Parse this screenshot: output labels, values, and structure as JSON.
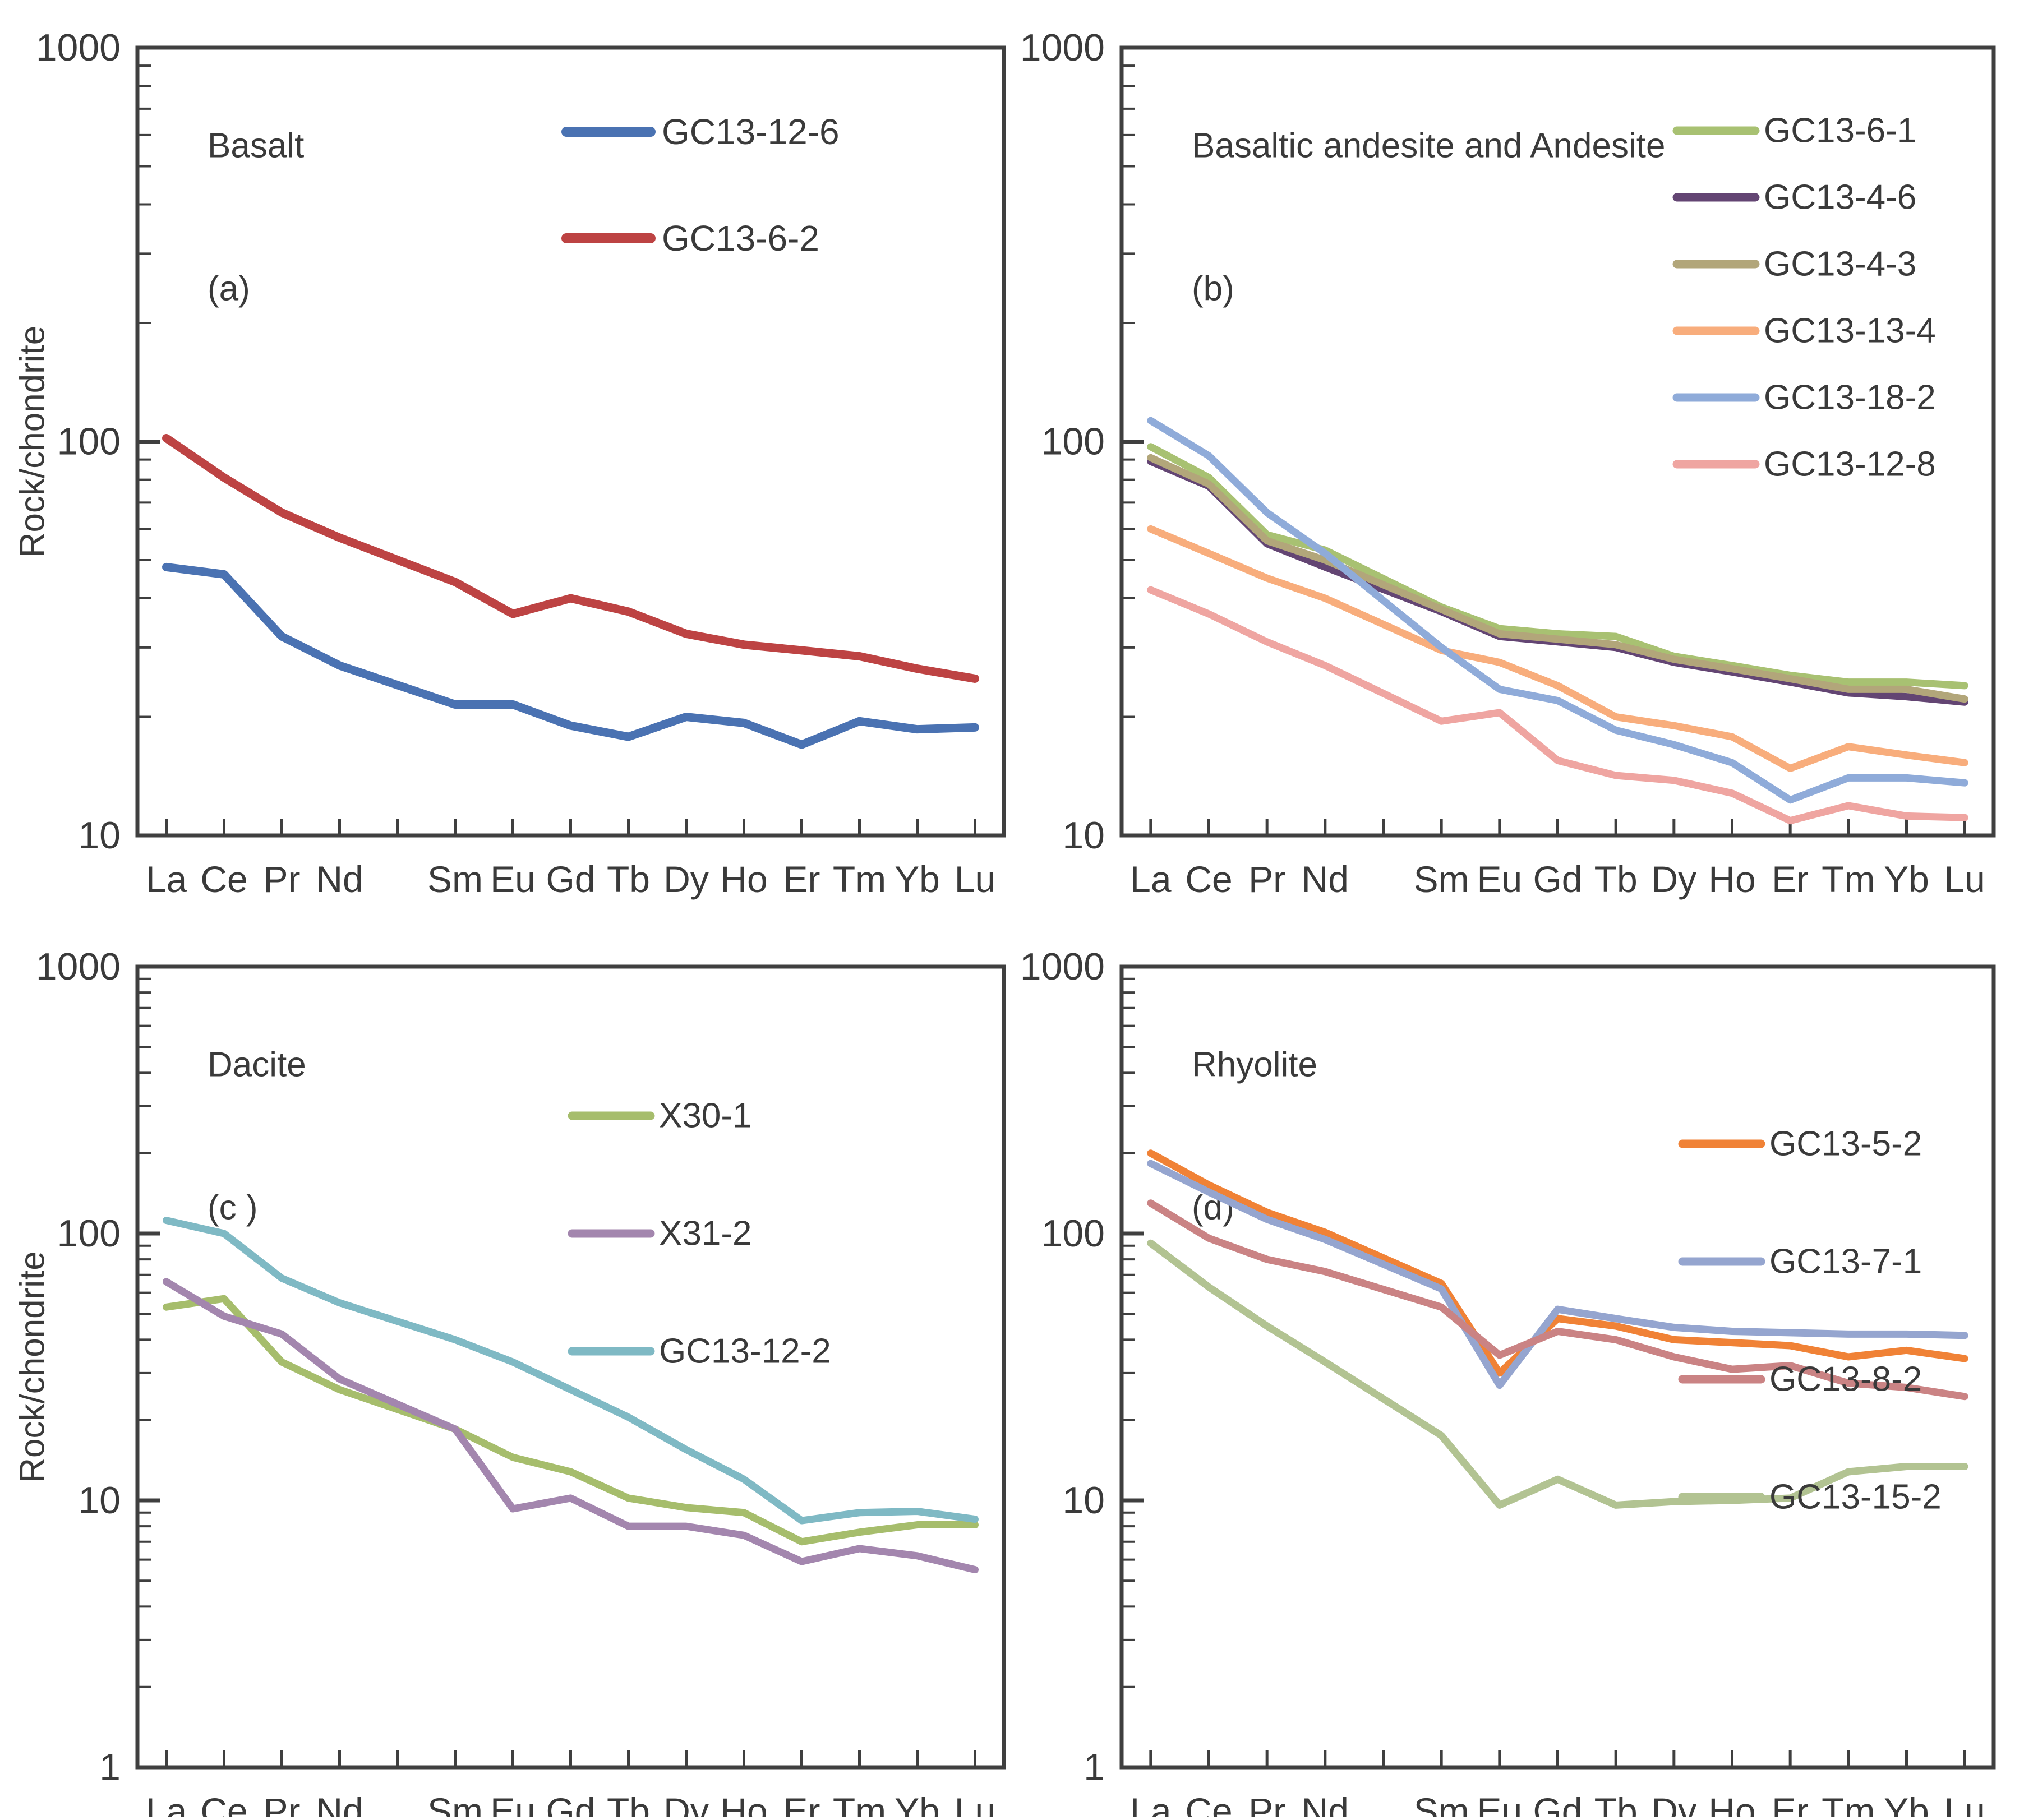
{
  "figure": {
    "ylabel": "Rock/chondrite",
    "x_categories": [
      "La",
      "Ce",
      "Pr",
      "Nd",
      "Sm",
      "Eu",
      "Gd",
      "Tb",
      "Dy",
      "Ho",
      "Er",
      "Tm",
      "Yb",
      "Lu"
    ],
    "x_gap_note": "one empty slot between Nd and Sm (Pm omitted)",
    "axis_color": "#3f3f3f",
    "text_color": "#3a3a3a"
  },
  "chart_data": [
    {
      "id": "a",
      "type": "line",
      "title": "Basalt",
      "panel_label": "(a)",
      "ylabel": "Rock/chondrite",
      "show_ylabel": true,
      "x": [
        "La",
        "Ce",
        "Pr",
        "Nd",
        "Sm",
        "Eu",
        "Gd",
        "Tb",
        "Dy",
        "Ho",
        "Er",
        "Tm",
        "Yb",
        "Lu"
      ],
      "y_scale": "log",
      "ylim": [
        10,
        1000
      ],
      "yticks": [
        "1000",
        "100",
        "10"
      ],
      "grid": false,
      "legend_position": "inside-upper-right",
      "series": [
        {
          "name": "GC13-12-6",
          "color": "#4a72b2",
          "values": [
            48,
            46,
            32,
            27,
            21.5,
            21.5,
            19,
            17.8,
            20,
            19.3,
            17,
            19.5,
            18.6,
            18.8
          ]
        },
        {
          "name": "GC13-6-2",
          "color": "#bd4343",
          "values": [
            102,
            81,
            66,
            57,
            44,
            36.5,
            40,
            37,
            32.5,
            30.5,
            29.5,
            28.5,
            26.5,
            25
          ]
        }
      ]
    },
    {
      "id": "b",
      "type": "line",
      "title": "Basaltic andesite and Andesite",
      "panel_label": "(b)",
      "ylabel": "",
      "show_ylabel": false,
      "x": [
        "La",
        "Ce",
        "Pr",
        "Nd",
        "Sm",
        "Eu",
        "Gd",
        "Tb",
        "Dy",
        "Ho",
        "Er",
        "Tm",
        "Yb",
        "Lu"
      ],
      "y_scale": "log",
      "ylim": [
        10,
        1000
      ],
      "yticks": [
        "1000",
        "100",
        "10"
      ],
      "grid": false,
      "legend_position": "inside-upper-right",
      "series": [
        {
          "name": "GC13-6-1",
          "color": "#a8c172",
          "values": [
            97,
            81,
            58,
            53,
            38,
            33.5,
            32.5,
            32,
            28.5,
            27,
            25.5,
            24.5,
            24.5,
            24
          ]
        },
        {
          "name": "GC13-4-6",
          "color": "#634573",
          "values": [
            89,
            77,
            55,
            48,
            37,
            32,
            31,
            30,
            27.5,
            26,
            24.5,
            23,
            22.5,
            21.8
          ]
        },
        {
          "name": "GC13-4-3",
          "color": "#b2a67a",
          "values": [
            91,
            78,
            56,
            50,
            37.5,
            32.5,
            31.5,
            30.5,
            28,
            26.5,
            25,
            23.5,
            23.5,
            22.2
          ]
        },
        {
          "name": "GC13-13-4",
          "color": "#f8ad7c",
          "values": [
            60,
            52,
            45,
            40,
            29.5,
            27.5,
            24,
            20,
            19,
            17.8,
            14.8,
            16.8,
            16,
            15.3
          ]
        },
        {
          "name": "GC13-18-2",
          "color": "#8fabd9",
          "values": [
            113,
            92,
            66,
            52,
            30,
            23.5,
            22,
            18.5,
            17,
            15.3,
            12.3,
            14,
            14,
            13.6
          ]
        },
        {
          "name": "GC13-12-8",
          "color": "#efa5a1",
          "values": [
            42,
            36.5,
            31,
            27,
            19.5,
            20.5,
            15.5,
            14.2,
            13.8,
            12.8,
            10.9,
            11.9,
            11.2,
            11.1
          ]
        }
      ]
    },
    {
      "id": "c",
      "type": "line",
      "title": "Dacite",
      "panel_label": "(c )",
      "ylabel": "Rock/chondrite",
      "show_ylabel": true,
      "x": [
        "La",
        "Ce",
        "Pr",
        "Nd",
        "Sm",
        "Eu",
        "Gd",
        "Tb",
        "Dy",
        "Ho",
        "Er",
        "Tm",
        "Yb",
        "Lu"
      ],
      "y_scale": "log",
      "ylim": [
        1,
        1000
      ],
      "yticks": [
        "1000",
        "100",
        "10",
        "1"
      ],
      "grid": false,
      "legend_position": "inside-upper-right",
      "series": [
        {
          "name": "X30-1",
          "color": "#a6bd6c",
          "values": [
            53,
            57,
            33,
            26,
            18.5,
            14.5,
            12.8,
            10.2,
            9.4,
            9.0,
            7.0,
            7.6,
            8.1,
            8.1
          ]
        },
        {
          "name": "X31-2",
          "color": "#a386ae",
          "values": [
            66,
            49,
            42,
            28.5,
            18.5,
            9.3,
            10.2,
            8.0,
            8.0,
            7.4,
            5.9,
            6.6,
            6.2,
            5.5
          ]
        },
        {
          "name": "GC13-12-2",
          "color": "#7fb9c4",
          "values": [
            112,
            100,
            68,
            55,
            40,
            33,
            26,
            20.5,
            15.5,
            12,
            8.4,
            9.0,
            9.1,
            8.5
          ]
        }
      ]
    },
    {
      "id": "d",
      "type": "line",
      "title": "Rhyolite",
      "panel_label": "(d)",
      "ylabel": "",
      "show_ylabel": false,
      "x": [
        "La",
        "Ce",
        "Pr",
        "Nd",
        "Sm",
        "Eu",
        "Gd",
        "Tb",
        "Dy",
        "Ho",
        "Er",
        "Tm",
        "Yb",
        "Lu"
      ],
      "y_scale": "log",
      "ylim": [
        1,
        1000
      ],
      "yticks": [
        "1000",
        "100",
        "10",
        "1"
      ],
      "grid": false,
      "legend_position": "inside-upper-right",
      "series": [
        {
          "name": "GC13-5-2",
          "color": "#f08236",
          "values": [
            200,
            152,
            120,
            101,
            65,
            30,
            48,
            45,
            40,
            39,
            38,
            34.5,
            36.5,
            34
          ]
        },
        {
          "name": "GC13-7-1",
          "color": "#95a5cf",
          "values": [
            183,
            143,
            113,
            95,
            62,
            27,
            52,
            48,
            44.5,
            43,
            42.5,
            42,
            42,
            41.5
          ]
        },
        {
          "name": "GC13-8-2",
          "color": "#ca8384",
          "values": [
            130,
            96,
            80,
            72,
            53,
            35,
            43,
            40,
            34.5,
            31,
            32,
            27.5,
            26.5,
            24.5
          ]
        },
        {
          "name": "GC13-15-2",
          "color": "#b2c392",
          "values": [
            92,
            63,
            45,
            33,
            17.5,
            9.6,
            12,
            9.6,
            9.9,
            10,
            10.2,
            12.8,
            13.4,
            13.4
          ]
        }
      ]
    }
  ]
}
